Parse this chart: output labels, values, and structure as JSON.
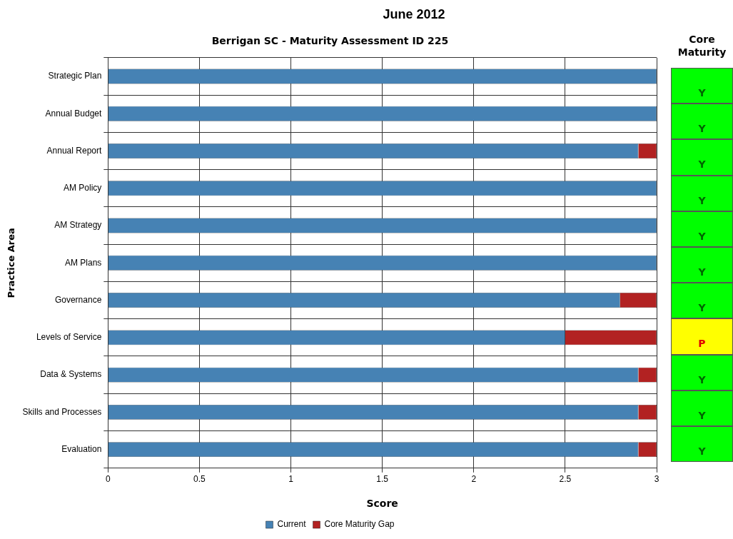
{
  "chart_data": [
    {
      "type": "bar",
      "orientation": "horizontal",
      "stacked": true,
      "title": "June 2012",
      "subtitle": "Berrigan SC - Maturity Assessment ID 225",
      "xlabel": "Score",
      "ylabel": "Practice Area",
      "categories": [
        "Strategic Plan",
        "Annual Budget",
        "Annual Report",
        "AM Policy",
        "AM Strategy",
        "AM Plans",
        "Governance",
        "Levels of Service",
        "Data & Systems",
        "Skills and Processes",
        "Evaluation"
      ],
      "series": [
        {
          "name": "Current",
          "color": "#4682b4",
          "values": [
            3,
            3,
            2.9,
            3,
            3,
            3,
            2.8,
            2.5,
            2.9,
            2.9,
            2.9
          ]
        },
        {
          "name": "Core Maturity Gap",
          "color": "#b22222",
          "values": [
            0,
            0,
            0.1,
            0,
            0,
            0,
            0.2,
            0.5,
            0.1,
            0.1,
            0.1
          ]
        }
      ],
      "xlim": [
        0,
        3
      ],
      "xticks": [
        0,
        0.5,
        1,
        1.5,
        2,
        2.5,
        3
      ],
      "grid": true,
      "legend": "bottom"
    },
    {
      "type": "other",
      "title": "Core Maturity",
      "annotations": [
        "Y",
        "Y",
        "Y",
        "Y",
        "Y",
        "Y",
        "Y",
        "P",
        "Y",
        "Y",
        "Y"
      ],
      "colors": [
        "#00ff00",
        "#00ff00",
        "#00ff00",
        "#00ff00",
        "#00ff00",
        "#00ff00",
        "#00ff00",
        "#ffff00",
        "#00ff00",
        "#00ff00",
        "#00ff00"
      ]
    }
  ]
}
